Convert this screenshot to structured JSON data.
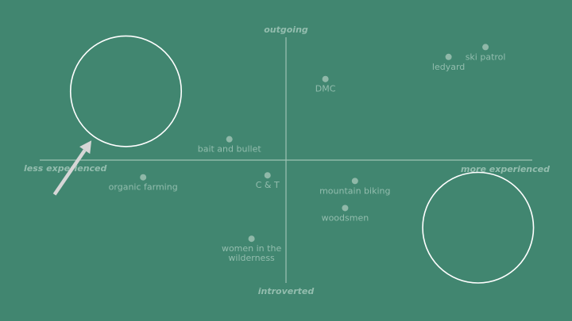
{
  "chart_data": {
    "type": "scatter",
    "title": "",
    "x_axis": {
      "negative_label": "less experienced",
      "positive_label": "more experienced",
      "range": [
        -10,
        10
      ]
    },
    "y_axis": {
      "positive_label": "outgoing",
      "negative_label": "introverted",
      "range": [
        -5,
        5
      ]
    },
    "grid": false,
    "legend": "none",
    "points": [
      {
        "label": "ledyard",
        "x": 6.6,
        "y": 4.2
      },
      {
        "label": "ski patrol",
        "x": 8.1,
        "y": 4.6
      },
      {
        "label": "DMC",
        "x": 1.6,
        "y": 3.3
      },
      {
        "label": "bait and bullet",
        "x": -2.3,
        "y": 0.85
      },
      {
        "label": "organic farming",
        "x": -5.8,
        "y": -0.7
      },
      {
        "label": "C & T",
        "x": -0.75,
        "y": -0.62
      },
      {
        "label": "mountain biking",
        "x": 2.8,
        "y": -0.85
      },
      {
        "label": "woodsmen",
        "x": 2.4,
        "y": -1.95
      },
      {
        "label": "women in the\nwilderness",
        "x": -1.4,
        "y": -3.2
      }
    ],
    "colors": {
      "background": "#418670",
      "axis": "#9cc2b4",
      "point": "#8fb8a8",
      "text": "#93bdae",
      "circle": "#ffffff",
      "arrow": "#d6d6d6"
    }
  },
  "annotations": {
    "circles": [
      {
        "name": "empty-circle-top-left",
        "cx": -6.5,
        "cy": 2.8,
        "r": 2.25
      },
      {
        "name": "empty-circle-bottom-right",
        "cx": 7.8,
        "cy": -2.75,
        "r": 2.25
      }
    ],
    "arrow": {
      "name": "pointer-arrow-icon",
      "from": [
        -9.4,
        -1.4
      ],
      "to": [
        -7.9,
        0.8
      ]
    }
  }
}
